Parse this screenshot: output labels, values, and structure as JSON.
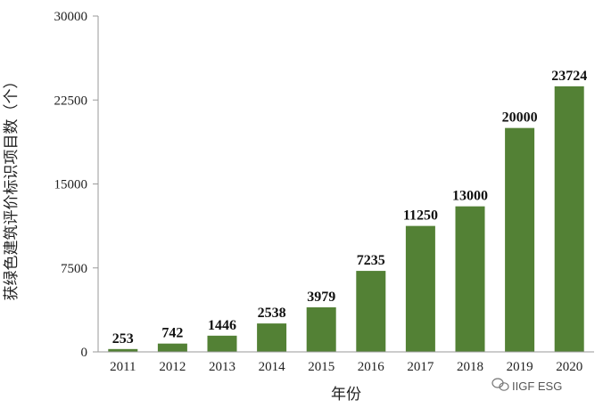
{
  "chart_data": {
    "type": "bar",
    "categories": [
      "2011",
      "2012",
      "2013",
      "2014",
      "2015",
      "2016",
      "2017",
      "2018",
      "2019",
      "2020"
    ],
    "values": [
      253,
      742,
      1446,
      2538,
      3979,
      7235,
      11250,
      13000,
      20000,
      23724
    ],
    "data_labels": [
      "253",
      "742",
      "1446",
      "2538",
      "3979",
      "7235",
      "11250",
      "13000",
      "20000",
      "23724"
    ],
    "xlabel": "年份",
    "ylabel": "获绿色建筑评价标识项目数（个）",
    "ylim": [
      0,
      30000
    ],
    "yticks": [
      0,
      7500,
      15000,
      22500,
      30000
    ],
    "ytick_labels": [
      "0",
      "7500",
      "15000",
      "22500",
      "30000"
    ],
    "grid": false,
    "bar_color": "#538135"
  },
  "watermark": {
    "text": "IIGF ESG",
    "icon": "wechat-icon"
  }
}
